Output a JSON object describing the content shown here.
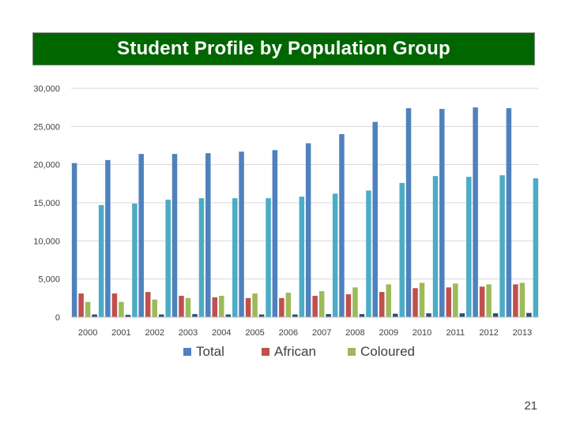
{
  "slide": {
    "title": "Student Profile by Population Group",
    "page_number": "21"
  },
  "chart_data": {
    "type": "bar",
    "categories": [
      "2000",
      "2001",
      "2002",
      "2003",
      "2004",
      "2005",
      "2006",
      "2007",
      "2008",
      "2009",
      "2010",
      "2011",
      "2012",
      "2013"
    ],
    "series": [
      {
        "name": "Total",
        "color": "#4f81bd",
        "values": [
          20200,
          20600,
          21400,
          21400,
          21500,
          21700,
          21900,
          22800,
          24000,
          25600,
          27400,
          27300,
          27500,
          27400
        ]
      },
      {
        "name": "African",
        "color": "#c0504d",
        "values": [
          3100,
          3100,
          3300,
          2800,
          2600,
          2500,
          2500,
          2800,
          3000,
          3300,
          3800,
          3900,
          4000,
          4300
        ]
      },
      {
        "name": "Coloured",
        "color": "#9bbb59",
        "values": [
          2000,
          2000,
          2300,
          2500,
          2800,
          3100,
          3200,
          3400,
          3900,
          4300,
          4500,
          4400,
          4300,
          4500
        ]
      },
      {
        "name": "",
        "color": "#2c4d75",
        "values": [
          350,
          300,
          350,
          400,
          350,
          350,
          350,
          400,
          400,
          450,
          500,
          500,
          500,
          550
        ]
      },
      {
        "name": "",
        "color": "#4bacc6",
        "values": [
          14700,
          14900,
          15400,
          15600,
          15600,
          15600,
          15800,
          16200,
          16600,
          17600,
          18500,
          18400,
          18600,
          18200
        ]
      }
    ],
    "yticks": [
      "0",
      "5,000",
      "10,000",
      "15,000",
      "20,000",
      "25,000",
      "30,000"
    ],
    "ylim": [
      0,
      30000
    ],
    "grid": true,
    "legend_position": "bottom"
  }
}
